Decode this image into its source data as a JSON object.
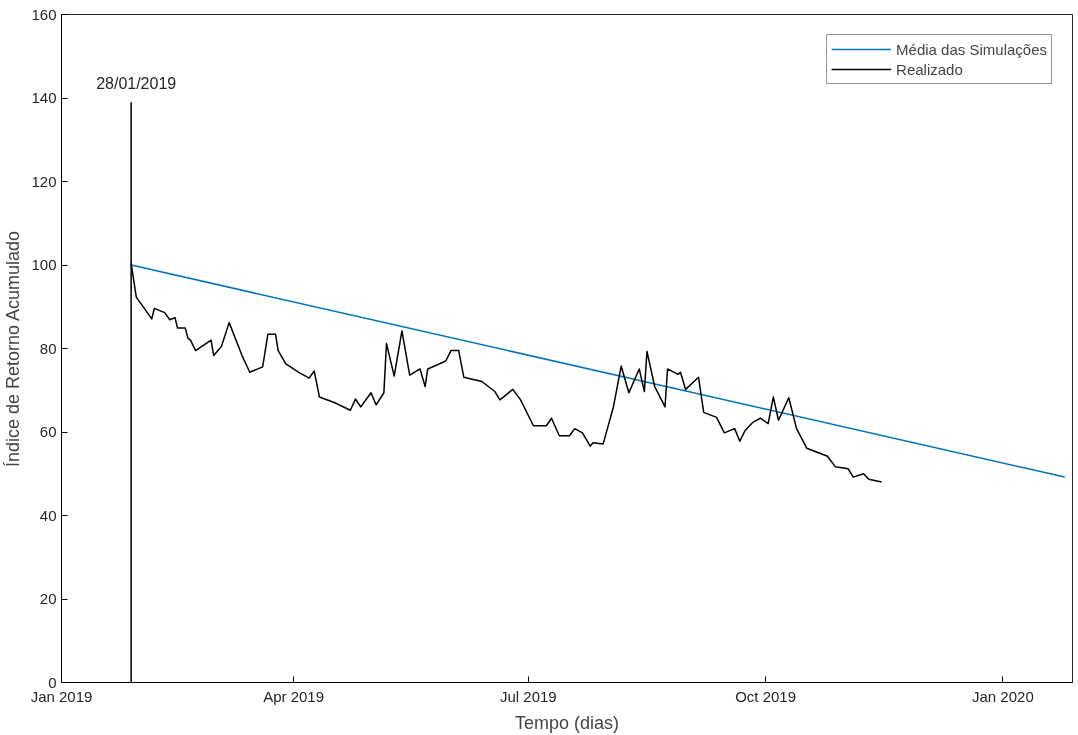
{
  "chart_data": {
    "type": "line",
    "xlabel": "Tempo (dias)",
    "ylabel": "Índice de Retorno Acumulado",
    "xlim": [
      "2019-01-01",
      "2020-01-28"
    ],
    "xticks": [
      {
        "value": "2019-01-01",
        "label": "Jan 2019"
      },
      {
        "value": "2019-04-01",
        "label": "Apr 2019"
      },
      {
        "value": "2019-07-01",
        "label": "Jul 2019"
      },
      {
        "value": "2019-10-01",
        "label": "Oct 2019"
      },
      {
        "value": "2020-01-01",
        "label": "Jan 2020"
      }
    ],
    "ylim": [
      0,
      160
    ],
    "yticks": [
      0,
      20,
      40,
      60,
      80,
      100,
      120,
      140,
      160
    ],
    "grid": false,
    "legend": "top right",
    "line_style": "solid",
    "marker": "none",
    "annotations": [
      "28/01/2019"
    ],
    "series": [
      {
        "name": "Média das Simulações",
        "color": "#0072bd",
        "x": [
          "2019-01-28",
          "2020-01-25"
        ],
        "values": [
          100,
          49.2
        ]
      },
      {
        "name": "Realizado",
        "color": "#000000",
        "x": [
          "2019-01-28",
          "2019-01-30",
          "2019-02-05",
          "2019-02-06",
          "2019-02-10",
          "2019-02-12",
          "2019-02-14",
          "2019-02-15",
          "2019-02-18",
          "2019-02-19",
          "2019-02-20",
          "2019-02-22",
          "2019-02-28",
          "2019-03-01",
          "2019-03-04",
          "2019-03-07",
          "2019-03-12",
          "2019-03-15",
          "2019-03-20",
          "2019-03-22",
          "2019-03-25",
          "2019-03-26",
          "2019-03-29",
          "2019-04-03",
          "2019-04-07",
          "2019-04-09",
          "2019-04-11",
          "2019-04-17",
          "2019-04-23",
          "2019-04-25",
          "2019-04-27",
          "2019-05-01",
          "2019-05-03",
          "2019-05-06",
          "2019-05-07",
          "2019-05-10",
          "2019-05-13",
          "2019-05-16",
          "2019-05-20",
          "2019-05-22",
          "2019-05-23",
          "2019-05-30",
          "2019-06-01",
          "2019-06-04",
          "2019-06-06",
          "2019-06-13",
          "2019-06-18",
          "2019-06-20",
          "2019-06-25",
          "2019-06-28",
          "2019-07-03",
          "2019-07-08",
          "2019-07-10",
          "2019-07-13",
          "2019-07-17",
          "2019-07-19",
          "2019-07-22",
          "2019-07-25",
          "2019-07-26",
          "2019-07-30",
          "2019-08-03",
          "2019-08-06",
          "2019-08-09",
          "2019-08-13",
          "2019-08-15",
          "2019-08-16",
          "2019-08-19",
          "2019-08-23",
          "2019-08-24",
          "2019-08-28",
          "2019-08-29",
          "2019-08-31",
          "2019-09-05",
          "2019-09-07",
          "2019-09-12",
          "2019-09-15",
          "2019-09-19",
          "2019-09-21",
          "2019-09-23",
          "2019-09-26",
          "2019-09-29",
          "2019-10-02",
          "2019-10-04",
          "2019-10-06",
          "2019-10-10",
          "2019-10-13",
          "2019-10-17",
          "2019-10-25",
          "2019-10-28",
          "2019-11-02",
          "2019-11-04",
          "2019-11-08",
          "2019-11-10",
          "2019-11-15"
        ],
        "values": [
          100.4,
          92.3,
          87.1,
          89.6,
          88.6,
          86.9,
          87.4,
          84.9,
          84.9,
          82.5,
          82.0,
          79.5,
          82.0,
          78.3,
          80.5,
          86.2,
          78.3,
          74.3,
          75.6,
          83.4,
          83.4,
          79.5,
          76.3,
          74.3,
          72.9,
          74.6,
          68.4,
          67.0,
          65.2,
          67.9,
          66.0,
          69.4,
          66.5,
          69.4,
          81.2,
          73.4,
          84.2,
          73.6,
          75.1,
          70.9,
          75.1,
          77.0,
          79.5,
          79.5,
          73.1,
          72.1,
          69.7,
          67.7,
          70.2,
          67.7,
          61.5,
          61.5,
          63.3,
          59.1,
          59.1,
          60.8,
          59.8,
          56.6,
          57.4,
          57.1,
          66.0,
          75.8,
          69.4,
          75.1,
          69.7,
          79.3,
          70.9,
          66.0,
          75.1,
          73.8,
          74.3,
          70.2,
          73.1,
          64.7,
          63.5,
          59.8,
          60.8,
          57.8,
          60.3,
          62.3,
          63.3,
          62.0,
          68.4,
          62.8,
          68.2,
          60.8,
          56.1,
          54.2,
          51.7,
          51.2,
          49.2,
          50.0,
          48.7,
          48.0
        ]
      },
      {
        "color": "#000000",
        "x": [
          "2019-01-28",
          "2019-01-28"
        ],
        "values": [
          0,
          139
        ]
      }
    ]
  }
}
